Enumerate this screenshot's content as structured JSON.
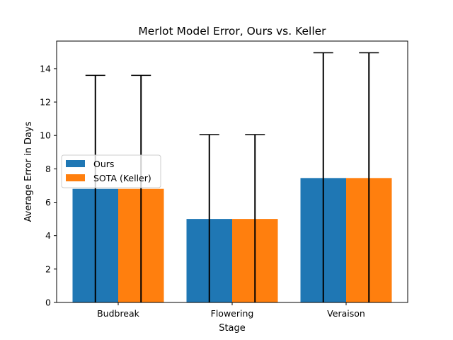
{
  "chart_data": {
    "type": "bar",
    "title": "Merlot Model Error, Ours vs. Keller",
    "xlabel": "Stage",
    "ylabel": "Average Error in Days",
    "categories": [
      "Budbreak",
      "Flowering",
      "Veraison"
    ],
    "series": [
      {
        "name": "Ours",
        "values": [
          6.8,
          5.0,
          7.45
        ],
        "errors": [
          6.8,
          5.05,
          7.5
        ],
        "color": "#1f77b4"
      },
      {
        "name": "SOTA (Keller)",
        "values": [
          6.8,
          5.0,
          7.45
        ],
        "errors": [
          6.8,
          5.05,
          7.5
        ],
        "color": "#ff7f0e"
      }
    ],
    "ylim": [
      0,
      15.65
    ],
    "yticks": [
      0,
      2,
      4,
      6,
      8,
      10,
      12,
      14
    ],
    "grid": false,
    "legend": "center-left"
  }
}
